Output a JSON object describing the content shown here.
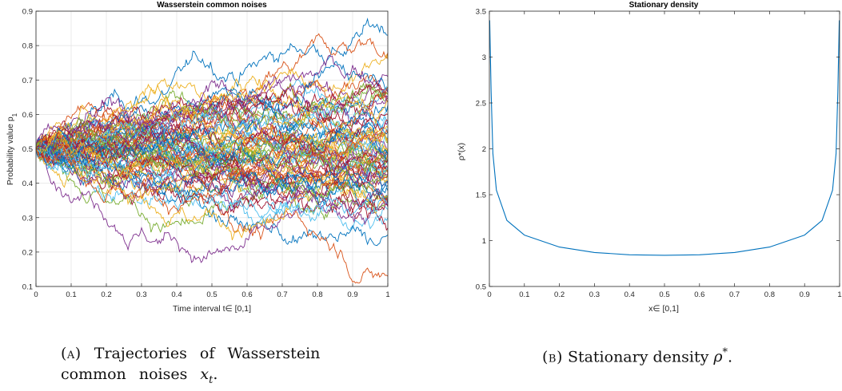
{
  "chart_data": [
    {
      "type": "line",
      "title": "Wasserstein common noises",
      "xlabel": "Time interval t∈ [0,1]",
      "ylabel": "Probability value p",
      "ylabel_sub": "1",
      "xlim": [
        0,
        1
      ],
      "ylim": [
        0.1,
        0.9
      ],
      "xticks": [
        "0",
        "0.1",
        "0.2",
        "0.3",
        "0.4",
        "0.5",
        "0.6",
        "0.7",
        "0.8",
        "0.9",
        "1"
      ],
      "yticks": [
        "0.1",
        "0.2",
        "0.3",
        "0.4",
        "0.5",
        "0.6",
        "0.7",
        "0.8",
        "0.9"
      ],
      "grid": true,
      "start_value": 0.5,
      "n_series": 80,
      "highlight_endpoints": [
        0.83,
        0.78,
        0.76,
        0.71,
        0.68,
        0.62,
        0.6,
        0.55,
        0.5,
        0.45,
        0.4,
        0.35,
        0.3,
        0.27,
        0.25,
        0.13
      ],
      "colors": [
        "#0072BD",
        "#D95319",
        "#EDB120",
        "#7E2F8E",
        "#77AC30",
        "#4DBEEE",
        "#A2142F"
      ]
    },
    {
      "type": "line",
      "title": "Stationary density",
      "xlabel": "x∈ [0,1]",
      "ylabel": "ρ*(x)",
      "xlim": [
        0,
        1
      ],
      "ylim": [
        0.5,
        3.5
      ],
      "xticks": [
        "0",
        "0.1",
        "0.2",
        "0.3",
        "0.4",
        "0.5",
        "0.6",
        "0.7",
        "0.8",
        "0.9",
        "1"
      ],
      "yticks": [
        "0.5",
        "1",
        "1.5",
        "2",
        "2.5",
        "3",
        "3.5"
      ],
      "grid": false,
      "series": [
        {
          "x": [
            0.001,
            0.005,
            0.01,
            0.02,
            0.05,
            0.1,
            0.2,
            0.3,
            0.4,
            0.5,
            0.6,
            0.7,
            0.8,
            0.9,
            0.95,
            0.98,
            0.99,
            0.995,
            0.999
          ],
          "y": [
            3.4,
            2.62,
            1.95,
            1.55,
            1.22,
            1.06,
            0.93,
            0.87,
            0.845,
            0.84,
            0.845,
            0.87,
            0.93,
            1.06,
            1.22,
            1.55,
            1.95,
            2.62,
            3.4
          ],
          "color": "#0072BD"
        }
      ]
    }
  ],
  "captions": {
    "a": {
      "tag": "(a)",
      "text": "Trajectories of Wasserstein common noises",
      "math": "x",
      "math_sub": "t",
      "end": "."
    },
    "b": {
      "tag": "(b)",
      "text": "Stationary density",
      "math": "ρ",
      "math_sup": "*",
      "end": "."
    }
  }
}
